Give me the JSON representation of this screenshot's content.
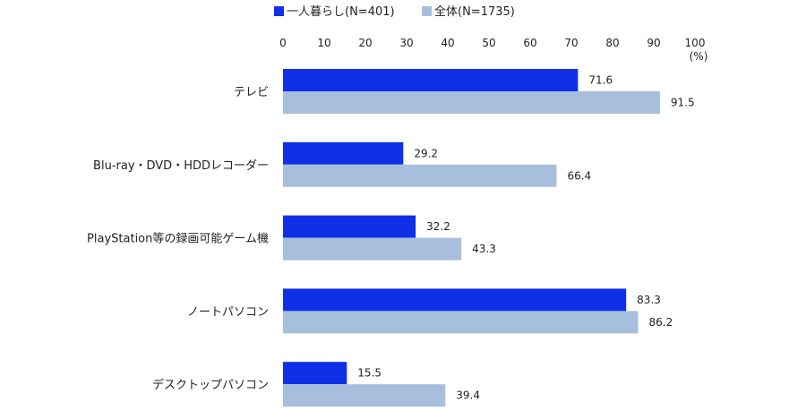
{
  "chart_data": {
    "type": "bar",
    "orientation": "horizontal",
    "categories": [
      "テレビ",
      "Blu-ray・DVD・HDDレコーダー",
      "PlayStation等の録画可能ゲーム機",
      "ノートパソコン",
      "デスクトップパソコン"
    ],
    "series": [
      {
        "name": "一人暮らし(N=401)",
        "values": [
          71.6,
          29.2,
          32.2,
          83.3,
          15.5
        ],
        "color": "#1030e8"
      },
      {
        "name": "全体(N=1735)",
        "values": [
          91.5,
          66.4,
          43.3,
          86.2,
          39.4
        ],
        "color": "#a7bfdc"
      }
    ],
    "x_ticks": [
      "0",
      "10",
      "20",
      "30",
      "40",
      "50",
      "60",
      "70",
      "80",
      "90",
      "100"
    ],
    "xlim": [
      0,
      100
    ],
    "unit": "(%)",
    "legend_position": "top",
    "grid": false
  }
}
